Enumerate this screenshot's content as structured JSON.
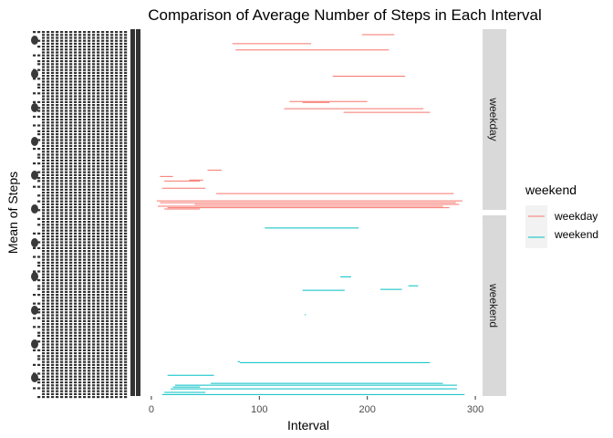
{
  "chart_data": {
    "type": "line",
    "title": "Comparison of Average Number of Steps in Each Interval",
    "xlabel": "Interval",
    "ylabel": "Mean of Steps",
    "xlim": [
      -5,
      305
    ],
    "x_ticks": [
      0,
      100,
      200,
      300
    ],
    "facets": [
      "weekday",
      "weekend"
    ],
    "legend": {
      "title": "weekend",
      "position": "right",
      "entries": [
        "weekday",
        "weekend"
      ]
    },
    "colors": {
      "weekday": "#F8766D",
      "weekend": "#00BFC4",
      "strip_bg": "#D9D9D9",
      "strip_text": "#1a1a1a",
      "y_labels": "#333333"
    },
    "grid": false,
    "y_tick_labels_overplotted": true,
    "series": [
      {
        "name": "weekday",
        "facet": "weekday",
        "segments": [
          {
            "x1": 195,
            "x2": 225,
            "rank": 0.97
          },
          {
            "x1": 75,
            "x2": 148,
            "rank": 0.92
          },
          {
            "x1": 78,
            "x2": 220,
            "rank": 0.885
          },
          {
            "x1": 168,
            "x2": 235,
            "rank": 0.74
          },
          {
            "x1": 128,
            "x2": 200,
            "rank": 0.6
          },
          {
            "x1": 140,
            "x2": 165,
            "rank": 0.595
          },
          {
            "x1": 123,
            "x2": 252,
            "rank": 0.56
          },
          {
            "x1": 178,
            "x2": 258,
            "rank": 0.54
          },
          {
            "x1": 52,
            "x2": 65,
            "rank": 0.22
          },
          {
            "x1": 8,
            "x2": 20,
            "rank": 0.185
          },
          {
            "x1": 35,
            "x2": 48,
            "rank": 0.165
          },
          {
            "x1": 12,
            "x2": 45,
            "rank": 0.16
          },
          {
            "x1": 10,
            "x2": 50,
            "rank": 0.12
          },
          {
            "x1": 60,
            "x2": 280,
            "rank": 0.09
          },
          {
            "x1": 5,
            "x2": 288,
            "rank": 0.05
          },
          {
            "x1": 8,
            "x2": 282,
            "rank": 0.04
          },
          {
            "x1": 40,
            "x2": 285,
            "rank": 0.03
          },
          {
            "x1": 6,
            "x2": 270,
            "rank": 0.02
          },
          {
            "x1": 15,
            "x2": 276,
            "rank": 0.012
          },
          {
            "x1": 12,
            "x2": 45,
            "rank": 0.005
          }
        ]
      },
      {
        "name": "weekend",
        "facet": "weekend",
        "segments": [
          {
            "x1": 105,
            "x2": 192,
            "rank": 0.93
          },
          {
            "x1": 175,
            "x2": 185,
            "rank": 0.66
          },
          {
            "x1": 238,
            "x2": 247,
            "rank": 0.61
          },
          {
            "x1": 212,
            "x2": 232,
            "rank": 0.59
          },
          {
            "x1": 140,
            "x2": 179,
            "rank": 0.585
          },
          {
            "x1": 142,
            "x2": 143,
            "rank": 0.45
          },
          {
            "x1": 80,
            "x2": 82,
            "rank": 0.19
          },
          {
            "x1": 82,
            "x2": 258,
            "rank": 0.185
          },
          {
            "x1": 15,
            "x2": 58,
            "rank": 0.115
          },
          {
            "x1": 55,
            "x2": 270,
            "rank": 0.07
          },
          {
            "x1": 22,
            "x2": 283,
            "rank": 0.06
          },
          {
            "x1": 20,
            "x2": 45,
            "rank": 0.05
          },
          {
            "x1": 18,
            "x2": 283,
            "rank": 0.04
          },
          {
            "x1": 12,
            "x2": 50,
            "rank": 0.02
          },
          {
            "x1": 10,
            "x2": 290,
            "rank": 0.008
          }
        ]
      }
    ]
  }
}
